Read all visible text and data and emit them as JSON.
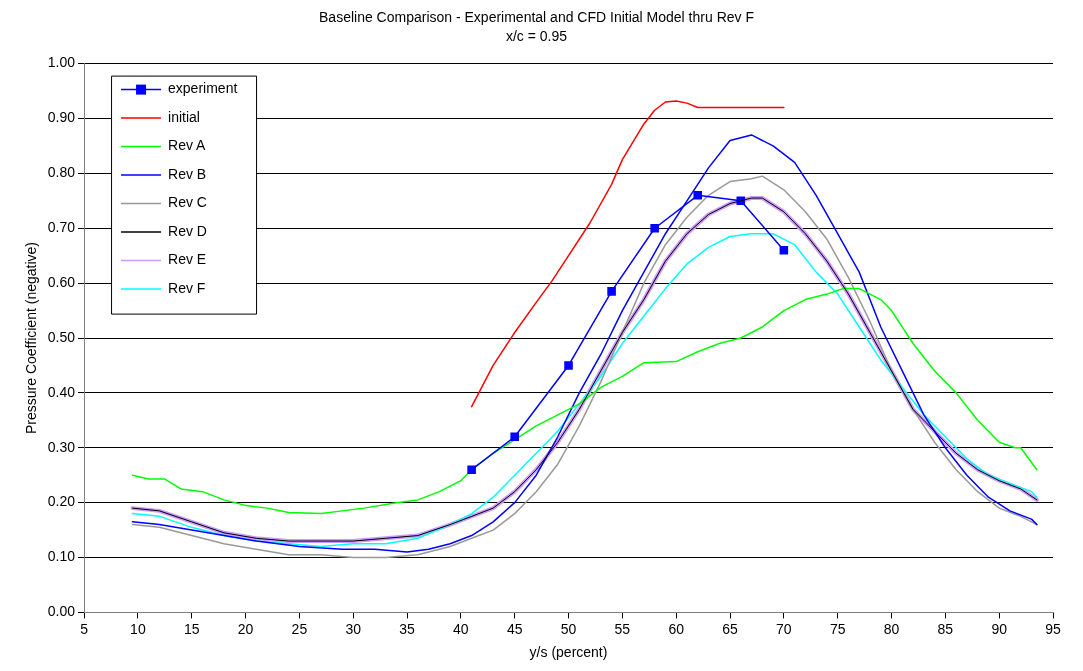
{
  "chart_data": {
    "type": "line",
    "title": "Baseline Comparison - Experimental and CFD Initial Model thru Rev F",
    "subtitle": "x/c = 0.95",
    "xlabel": "y/s (percent)",
    "ylabel": "Pressure Coefficient (negative)",
    "xlim": [
      5,
      95
    ],
    "xticks": [
      5,
      10,
      15,
      20,
      25,
      30,
      35,
      40,
      45,
      50,
      55,
      60,
      65,
      70,
      75,
      80,
      85,
      90,
      95
    ],
    "ylim": [
      0,
      1
    ],
    "yticks": [
      {
        "value": 0,
        "label": "0.00"
      },
      {
        "value": 0.1,
        "label": "0.10"
      },
      {
        "value": 0.2,
        "label": "0.20"
      },
      {
        "value": 0.3,
        "label": "0.30"
      },
      {
        "value": 0.4,
        "label": "0.40"
      },
      {
        "value": 0.5,
        "label": "0.50"
      },
      {
        "value": 0.6,
        "label": "0.60"
      },
      {
        "value": 0.7,
        "label": "0.70"
      },
      {
        "value": 0.8,
        "label": "0.80"
      },
      {
        "value": 0.9,
        "label": "0.90"
      },
      {
        "value": 1,
        "label": "1.00"
      }
    ],
    "grid": "y",
    "legend": "top left",
    "line_style": "solid",
    "series": [
      {
        "name": "experiment",
        "color": "#0000ff",
        "marker": "square",
        "x": [
          41,
          45,
          50,
          54,
          58,
          62,
          66,
          70
        ],
        "values": [
          0.26,
          0.32,
          0.45,
          0.585,
          0.7,
          0.76,
          0.75,
          0.66
        ]
      },
      {
        "name": "initial",
        "color": "#ff0000",
        "marker": "none",
        "x": [
          41,
          43,
          45,
          47,
          48.5,
          50,
          52,
          54,
          55,
          57,
          58,
          59,
          60,
          61,
          62,
          64,
          70
        ],
        "values": [
          0.375,
          0.45,
          0.51,
          0.565,
          0.605,
          0.65,
          0.71,
          0.78,
          0.825,
          0.89,
          0.915,
          0.93,
          0.932,
          0.928,
          0.92,
          0.92,
          0.92
        ]
      },
      {
        "name": "Rev A",
        "color": "#00ff00",
        "marker": "none",
        "x": [
          9.5,
          11,
          12.5,
          14,
          16,
          18,
          20,
          22,
          24,
          27,
          29,
          31,
          34,
          36,
          38,
          40,
          41,
          43,
          45,
          47,
          49,
          51,
          53,
          55,
          57,
          60,
          62,
          64,
          66,
          68,
          70,
          72,
          74,
          75.5,
          77,
          79,
          80,
          82,
          84,
          86,
          88,
          90,
          91.5,
          92,
          93.5
        ],
        "values": [
          0.25,
          0.243,
          0.243,
          0.225,
          0.22,
          0.205,
          0.195,
          0.19,
          0.182,
          0.18,
          0.185,
          0.19,
          0.2,
          0.205,
          0.22,
          0.24,
          0.26,
          0.29,
          0.315,
          0.34,
          0.36,
          0.38,
          0.41,
          0.43,
          0.455,
          0.457,
          0.475,
          0.49,
          0.5,
          0.52,
          0.55,
          0.57,
          0.58,
          0.59,
          0.59,
          0.57,
          0.55,
          0.49,
          0.44,
          0.4,
          0.35,
          0.31,
          0.3,
          0.3,
          0.26
        ]
      },
      {
        "name": "Rev B",
        "color": "#0000ff",
        "marker": "none",
        "x": [
          9.5,
          12,
          15,
          18,
          21,
          25,
          29,
          32,
          35,
          37,
          39,
          41,
          43,
          45,
          47,
          49,
          51,
          53,
          55,
          57,
          59,
          61,
          63,
          65,
          67,
          69,
          71,
          73,
          75,
          77,
          79,
          81,
          83,
          85,
          87,
          89,
          91,
          93,
          93.5
        ],
        "values": [
          0.165,
          0.16,
          0.15,
          0.14,
          0.13,
          0.12,
          0.115,
          0.115,
          0.11,
          0.115,
          0.125,
          0.14,
          0.165,
          0.2,
          0.25,
          0.32,
          0.4,
          0.47,
          0.55,
          0.62,
          0.69,
          0.75,
          0.81,
          0.86,
          0.87,
          0.85,
          0.82,
          0.76,
          0.69,
          0.62,
          0.52,
          0.44,
          0.36,
          0.3,
          0.25,
          0.21,
          0.185,
          0.17,
          0.16
        ]
      },
      {
        "name": "Rev C",
        "color": "#999999",
        "marker": "none",
        "x": [
          9.5,
          12,
          15,
          18,
          21,
          24,
          27,
          30,
          33,
          36,
          39,
          41,
          43,
          45,
          47,
          49,
          51,
          53,
          55,
          57,
          59,
          61,
          63,
          65,
          67,
          68,
          70,
          72,
          74,
          76,
          78,
          80,
          82,
          84,
          86,
          88,
          90,
          92,
          93.5
        ],
        "values": [
          0.16,
          0.155,
          0.14,
          0.125,
          0.115,
          0.105,
          0.105,
          0.1,
          0.1,
          0.105,
          0.12,
          0.135,
          0.15,
          0.18,
          0.22,
          0.27,
          0.34,
          0.42,
          0.51,
          0.6,
          0.67,
          0.72,
          0.76,
          0.785,
          0.79,
          0.795,
          0.77,
          0.73,
          0.68,
          0.61,
          0.53,
          0.44,
          0.37,
          0.31,
          0.26,
          0.22,
          0.19,
          0.175,
          0.16
        ]
      },
      {
        "name": "Rev D",
        "color": "#000000",
        "marker": "none",
        "x": [
          9.5,
          12,
          15,
          18,
          21,
          24,
          27,
          30,
          33,
          36,
          39,
          41,
          43,
          45,
          47,
          49,
          51,
          53,
          55,
          57,
          59,
          61,
          63,
          65,
          67,
          68,
          70,
          72,
          74,
          76,
          78,
          80,
          82,
          84,
          86,
          88,
          90,
          92,
          93.5
        ],
        "values": [
          0.19,
          0.185,
          0.165,
          0.145,
          0.135,
          0.13,
          0.13,
          0.13,
          0.135,
          0.14,
          0.16,
          0.175,
          0.19,
          0.22,
          0.26,
          0.31,
          0.37,
          0.44,
          0.51,
          0.57,
          0.64,
          0.69,
          0.725,
          0.745,
          0.755,
          0.755,
          0.73,
          0.69,
          0.64,
          0.58,
          0.51,
          0.44,
          0.37,
          0.33,
          0.29,
          0.26,
          0.24,
          0.225,
          0.205
        ]
      },
      {
        "name": "Rev E",
        "color": "#cc99ff",
        "marker": "none",
        "x": [
          9.5,
          12,
          15,
          18,
          21,
          24,
          27,
          30,
          33,
          36,
          39,
          41,
          43,
          45,
          47,
          49,
          51,
          53,
          55,
          57,
          59,
          61,
          63,
          65,
          67,
          68,
          70,
          72,
          74,
          76,
          78,
          80,
          82,
          84,
          86,
          88,
          90,
          92,
          93.5
        ],
        "values": [
          0.19,
          0.185,
          0.165,
          0.145,
          0.135,
          0.13,
          0.13,
          0.13,
          0.135,
          0.14,
          0.16,
          0.175,
          0.19,
          0.22,
          0.26,
          0.31,
          0.37,
          0.44,
          0.51,
          0.57,
          0.64,
          0.69,
          0.725,
          0.745,
          0.755,
          0.755,
          0.73,
          0.69,
          0.64,
          0.58,
          0.51,
          0.44,
          0.37,
          0.33,
          0.29,
          0.26,
          0.24,
          0.225,
          0.205
        ]
      },
      {
        "name": "Rev F",
        "color": "#00ffff",
        "marker": "none",
        "x": [
          9.5,
          12,
          15,
          18,
          21,
          24,
          27,
          30,
          33,
          36,
          39,
          41,
          43,
          45,
          47,
          49,
          51,
          53,
          55,
          57,
          59,
          61,
          63,
          65,
          67,
          69,
          71,
          73,
          75,
          77,
          79,
          81,
          83,
          85,
          87,
          89,
          91,
          93,
          93.5
        ],
        "values": [
          0.18,
          0.175,
          0.155,
          0.14,
          0.13,
          0.125,
          0.12,
          0.125,
          0.125,
          0.135,
          0.16,
          0.18,
          0.21,
          0.25,
          0.29,
          0.33,
          0.38,
          0.43,
          0.49,
          0.54,
          0.59,
          0.635,
          0.665,
          0.685,
          0.69,
          0.69,
          0.67,
          0.62,
          0.58,
          0.52,
          0.46,
          0.41,
          0.36,
          0.32,
          0.28,
          0.25,
          0.235,
          0.22,
          0.21
        ]
      }
    ]
  }
}
